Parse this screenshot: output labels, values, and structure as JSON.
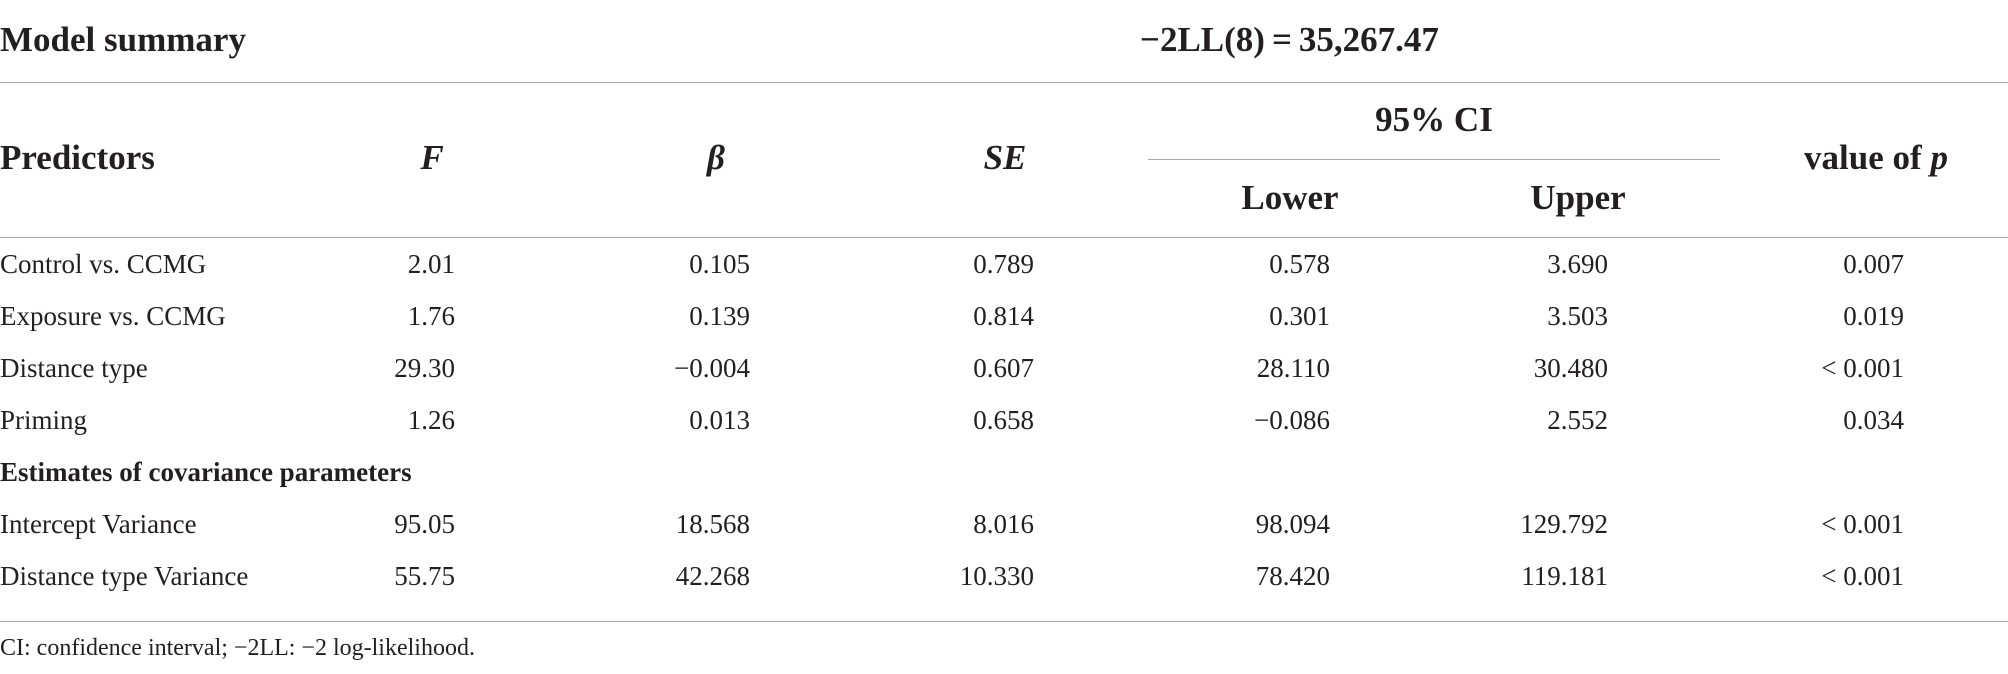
{
  "summary": {
    "label": "Model summary",
    "value": "−2LL(8) = 35,267.47"
  },
  "header": {
    "predictors": "Predictors",
    "f": "F",
    "beta": "β",
    "se": "SE",
    "ci": "95% CI",
    "lower": "Lower",
    "upper": "Upper",
    "p_prefix": "value of ",
    "p_var": "p"
  },
  "rows": [
    {
      "label": "Control vs. CCMG",
      "f": "2.01",
      "beta": "0.105",
      "se": "0.789",
      "lower": "0.578",
      "upper": "3.690",
      "p": "0.007"
    },
    {
      "label": "Exposure vs. CCMG",
      "f": "1.76",
      "beta": "0.139",
      "se": "0.814",
      "lower": "0.301",
      "upper": "3.503",
      "p": "0.019"
    },
    {
      "label": "Distance type",
      "f": "29.30",
      "beta": "−0.004",
      "se": "0.607",
      "lower": "28.110",
      "upper": "30.480",
      "p": "< 0.001"
    },
    {
      "label": "Priming",
      "f": "1.26",
      "beta": "0.013",
      "se": "0.658",
      "lower": "−0.086",
      "upper": "2.552",
      "p": "0.034"
    }
  ],
  "section_label": "Estimates of covariance parameters",
  "cov_rows": [
    {
      "label": "Intercept Variance",
      "f": "95.05",
      "beta": "18.568",
      "se": "8.016",
      "lower": "98.094",
      "upper": "129.792",
      "p": "< 0.001"
    },
    {
      "label": "Distance type Variance",
      "f": "55.75",
      "beta": "42.268",
      "se": "10.330",
      "lower": "78.420",
      "upper": "119.181",
      "p": "< 0.001"
    }
  ],
  "footnote": "CI: confidence interval; −2LL: −2 log-likelihood."
}
